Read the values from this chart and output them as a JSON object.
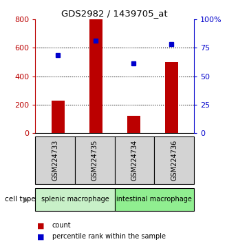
{
  "title": "GDS2982 / 1439705_at",
  "samples": [
    "GSM224733",
    "GSM224735",
    "GSM224734",
    "GSM224736"
  ],
  "bar_values": [
    230,
    800,
    120,
    500
  ],
  "percentile_values": [
    68.75,
    81.6,
    61.25,
    78.1
  ],
  "bar_color": "#bb0000",
  "dot_color": "#0000cc",
  "left_ylim": [
    0,
    800
  ],
  "right_ylim": [
    0,
    100
  ],
  "left_yticks": [
    0,
    200,
    400,
    600,
    800
  ],
  "right_yticks": [
    0,
    25,
    50,
    75,
    100
  ],
  "left_yticklabels": [
    "0",
    "200",
    "400",
    "600",
    "800"
  ],
  "right_yticklabels": [
    "0",
    "25",
    "50",
    "75",
    "100%"
  ],
  "groups": [
    {
      "label": "splenic macrophage",
      "indices": [
        0,
        1
      ],
      "color": "#c8f0c8"
    },
    {
      "label": "intestinal macrophage",
      "indices": [
        2,
        3
      ],
      "color": "#90ee90"
    }
  ],
  "cell_type_label": "cell type",
  "legend_items": [
    {
      "label": "count",
      "color": "#bb0000"
    },
    {
      "label": "percentile rank within the sample",
      "color": "#0000cc"
    }
  ],
  "background_color": "#ffffff",
  "plot_bg": "#ffffff",
  "bar_width": 0.35
}
